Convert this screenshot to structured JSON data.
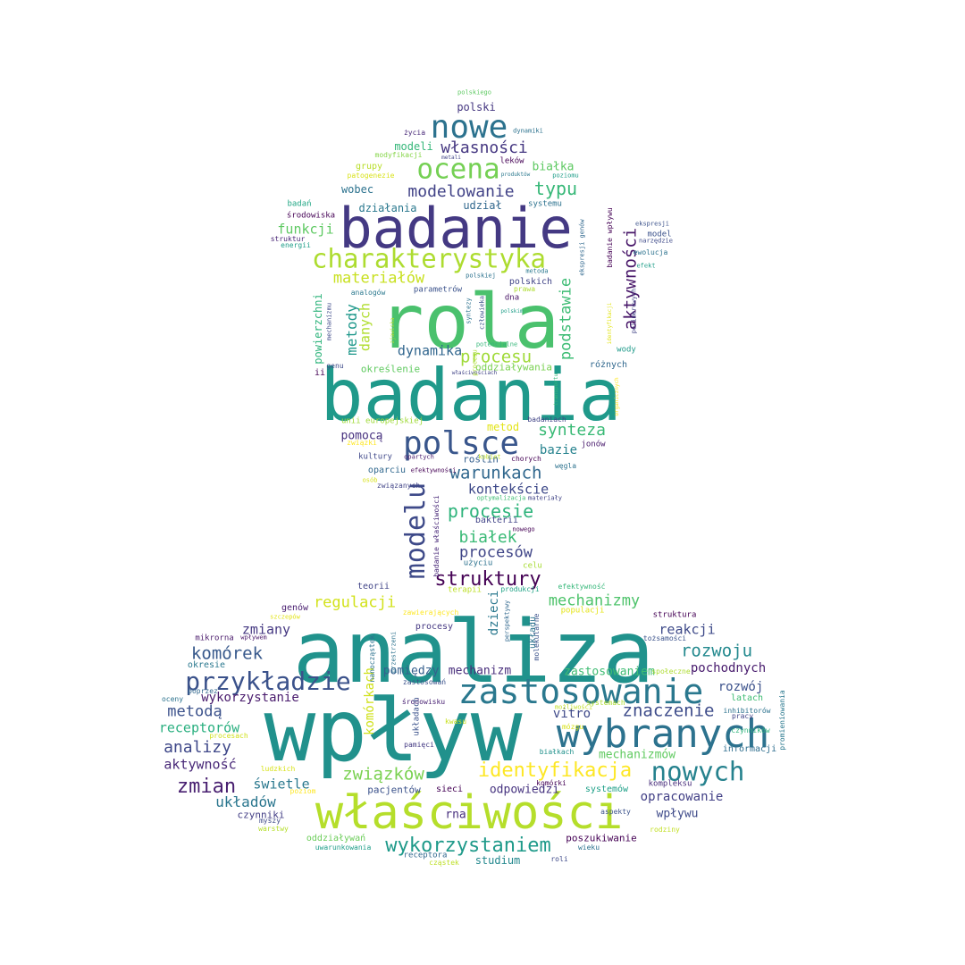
{
  "words": [
    {
      "text": "wpływ",
      "color": "#21918c"
    },
    {
      "text": "analiza",
      "color": "#20928c"
    },
    {
      "text": "badania",
      "color": "#1f998a"
    },
    {
      "text": "rola",
      "color": "#4ac16d"
    },
    {
      "text": "badanie",
      "color": "#443983"
    },
    {
      "text": "właściwości",
      "color": "#b5de2b"
    },
    {
      "text": "wybranych",
      "color": "#2c728e"
    },
    {
      "text": "zastosowanie",
      "color": "#2a788e"
    },
    {
      "text": "polsce",
      "color": "#39568c"
    },
    {
      "text": "charakterystyka",
      "color": "#addc30"
    },
    {
      "text": "ocena",
      "color": "#75d054"
    },
    {
      "text": "nowe",
      "color": "#2c728e"
    },
    {
      "text": "przykładzie",
      "color": "#3b528b"
    },
    {
      "text": "modelu",
      "color": "#3e4a89"
    },
    {
      "text": "nowych",
      "color": "#26828e"
    },
    {
      "text": "identyfikacja",
      "color": "#fde725"
    },
    {
      "text": "struktury",
      "color": "#440154"
    },
    {
      "text": "wykorzystaniem",
      "color": "#1f9a8a"
    },
    {
      "text": "zmian",
      "color": "#481f70"
    },
    {
      "text": "procesie",
      "color": "#2fb47c"
    },
    {
      "text": "warunkach",
      "color": "#31688e"
    },
    {
      "text": "związków",
      "color": "#7ad151"
    },
    {
      "text": "komórek",
      "color": "#38598c"
    },
    {
      "text": "synteza",
      "color": "#3aba76"
    },
    {
      "text": "typu",
      "color": "#37b878"
    },
    {
      "text": "znaczenie",
      "color": "#3e4c8a"
    },
    {
      "text": "rozwoju",
      "color": "#23898e"
    },
    {
      "text": "procesu",
      "color": "#a0da39"
    },
    {
      "text": "modelowanie",
      "color": "#414287"
    },
    {
      "text": "materiałów",
      "color": "#c8e020"
    },
    {
      "text": "aktywności",
      "color": "#481769"
    },
    {
      "text": "podstawie",
      "color": "#3dbc74"
    },
    {
      "text": "mechanizmy",
      "color": "#4ec36b"
    },
    {
      "text": "regulacji",
      "color": "#d2e21b"
    },
    {
      "text": "metody",
      "color": "#1f988b"
    },
    {
      "text": "białek",
      "color": "#3aba76"
    },
    {
      "text": "procesów",
      "color": "#404688"
    },
    {
      "text": "analizy",
      "color": "#3f4889"
    },
    {
      "text": "metodą",
      "color": "#3b518b"
    },
    {
      "text": "układów",
      "color": "#2a768e"
    },
    {
      "text": "własności",
      "color": "#453781"
    },
    {
      "text": "kontekście",
      "color": "#3e4989"
    },
    {
      "text": "dynamika",
      "color": "#31668e"
    },
    {
      "text": "funkcji",
      "color": "#5ec962"
    },
    {
      "text": "danych",
      "color": "#b0dd2f"
    },
    {
      "text": "receptorów",
      "color": "#29af7f"
    },
    {
      "text": "aktywność",
      "color": "#482878"
    },
    {
      "text": "świetle",
      "color": "#2a788e"
    },
    {
      "text": "komórkach",
      "color": "#d0e11c"
    },
    {
      "text": "zmiany",
      "color": "#453882"
    },
    {
      "text": "reakcji",
      "color": "#3e4a89"
    },
    {
      "text": "rozwój",
      "color": "#3b518b"
    },
    {
      "text": "pochodnych",
      "color": "#481b6d"
    },
    {
      "text": "vitro",
      "color": "#3e4989"
    },
    {
      "text": "mechanizm",
      "color": "#472d7b"
    },
    {
      "text": "pomiędzy",
      "color": "#355f8d"
    },
    {
      "text": "wykorzystanie",
      "color": "#481a6c"
    },
    {
      "text": "zastosowaniem",
      "color": "#3fbc73"
    },
    {
      "text": "mechanizmów",
      "color": "#60ca60"
    },
    {
      "text": "opracowanie",
      "color": "#424086"
    },
    {
      "text": "wpływu",
      "color": "#3e4a89"
    },
    {
      "text": "odpowiedzi",
      "color": "#46337f"
    },
    {
      "text": "rna",
      "color": "#472f7d"
    },
    {
      "text": "studium",
      "color": "#23888e"
    },
    {
      "text": "poszukiwanie",
      "color": "#440154"
    },
    {
      "text": "dzieci",
      "color": "#2a788e"
    },
    {
      "text": "bazie",
      "color": "#26828e"
    },
    {
      "text": "pomocą",
      "color": "#46307e"
    },
    {
      "text": "metod",
      "color": "#e2e418"
    },
    {
      "text": "powierzchni",
      "color": "#2fb47c"
    },
    {
      "text": "polski",
      "color": "#453781"
    },
    {
      "text": "modeli",
      "color": "#35b779"
    },
    {
      "text": "białka",
      "color": "#5ec962"
    },
    {
      "text": "wobec",
      "color": "#2c728e"
    },
    {
      "text": "działania",
      "color": "#2a788e"
    },
    {
      "text": "udział",
      "color": "#31688e"
    },
    {
      "text": "teorii",
      "color": "#414487"
    },
    {
      "text": "genów",
      "color": "#481d6f"
    },
    {
      "text": "czynniki",
      "color": "#433e85"
    },
    {
      "text": "pacjentów",
      "color": "#3b528b"
    },
    {
      "text": "oddziaływań",
      "color": "#6ccd5a"
    },
    {
      "text": "bakterii",
      "color": "#414487"
    },
    {
      "text": "oddziaływania",
      "color": "#7ad151"
    },
    {
      "text": "określenie",
      "color": "#60ca60"
    },
    {
      "text": "roślin",
      "color": "#355f8d"
    },
    {
      "text": "oparciu",
      "color": "#31688e"
    },
    {
      "text": "sieci",
      "color": "#440154"
    },
    {
      "text": "różnych",
      "color": "#31688e"
    },
    {
      "text": "procesy",
      "color": "#453882"
    },
    {
      "text": "kultury",
      "color": "#3f4889"
    },
    {
      "text": "latach",
      "color": "#3fbc73"
    },
    {
      "text": "informacji",
      "color": "#2e6e8e"
    },
    {
      "text": "okresie",
      "color": "#2a788e"
    },
    {
      "text": "struktura",
      "color": "#440154"
    },
    {
      "text": "systemów",
      "color": "#1fa088"
    },
    {
      "text": "badań",
      "color": "#22a785"
    },
    {
      "text": "środowiska",
      "color": "#440154"
    },
    {
      "text": "grupy",
      "color": "#b8de29"
    },
    {
      "text": "leków",
      "color": "#440154"
    },
    {
      "text": "polskich",
      "color": "#414487"
    },
    {
      "text": "model",
      "color": "#3b528b"
    },
    {
      "text": "dna",
      "color": "#471365"
    },
    {
      "text": "kompleksu",
      "color": "#472c7a"
    },
    {
      "text": "użyciu",
      "color": "#2c728e"
    },
    {
      "text": "celu",
      "color": "#a8db34"
    },
    {
      "text": "wody",
      "color": "#1f9a8a"
    },
    {
      "text": "systemu",
      "color": "#2c728e"
    },
    {
      "text": "analogów",
      "color": "#2a788e"
    },
    {
      "text": "parametrów",
      "color": "#3b528b"
    },
    {
      "text": "mikrorna",
      "color": "#48186a"
    },
    {
      "text": "populacji",
      "color": "#e5e419"
    },
    {
      "text": "życia",
      "color": "#482878"
    },
    {
      "text": "jonów",
      "color": "#481a6c"
    },
    {
      "text": "struktur",
      "color": "#482475"
    },
    {
      "text": "poprzez",
      "color": "#31688e"
    },
    {
      "text": "terapii",
      "color": "#bddf26"
    },
    {
      "text": "produkcji",
      "color": "#20a386"
    },
    {
      "text": "tożsamości",
      "color": "#3b528b"
    },
    {
      "text": "węgla",
      "color": "#2c728e"
    },
    {
      "text": "chorych",
      "color": "#440154"
    },
    {
      "text": "związanych",
      "color": "#414487"
    },
    {
      "text": "genu",
      "color": "#3e4a89"
    },
    {
      "text": "ii",
      "color": "#440154"
    },
    {
      "text": "unii europejskiej",
      "color": "#a0da39"
    },
    {
      "text": "badaniach",
      "color": "#414487"
    },
    {
      "text": "systemach",
      "color": "#addc30"
    },
    {
      "text": "środowisku",
      "color": "#482173"
    },
    {
      "text": "zastosowań",
      "color": "#3b528b"
    },
    {
      "text": "kwasu",
      "color": "#c8e020"
    },
    {
      "text": "mózgu",
      "color": "#d8e219"
    },
    {
      "text": "pamięci",
      "color": "#443a83"
    },
    {
      "text": "molekularne",
      "color": "#3b528b"
    },
    {
      "text": "efektywność",
      "color": "#35b779"
    },
    {
      "text": "energii",
      "color": "#1f9e89"
    },
    {
      "text": "inhibitorów",
      "color": "#2c728e"
    },
    {
      "text": "czynników",
      "color": "#2fb47c"
    },
    {
      "text": "pracy",
      "color": "#414487"
    },
    {
      "text": "społeczne",
      "color": "#addc30"
    },
    {
      "text": "promieniowania",
      "color": "#2a788e"
    },
    {
      "text": "komórki",
      "color": "#440154"
    },
    {
      "text": "aspekty",
      "color": "#3b528b"
    },
    {
      "text": "rodziny",
      "color": "#c2df23"
    },
    {
      "text": "wieku",
      "color": "#2c728e"
    },
    {
      "text": "roli",
      "color": "#3e4a89"
    },
    {
      "text": "cząstek",
      "color": "#bddf26"
    },
    {
      "text": "receptora",
      "color": "#31688e"
    },
    {
      "text": "uwarunkowania",
      "color": "#1f9e89"
    },
    {
      "text": "warstwy",
      "color": "#b5de2b"
    },
    {
      "text": "myszy",
      "color": "#3e4a89"
    },
    {
      "text": "ludzkich",
      "color": "#d8e219"
    },
    {
      "text": "poziom",
      "color": "#fde725"
    },
    {
      "text": "procesach",
      "color": "#d0e11c"
    },
    {
      "text": "oceny",
      "color": "#2c728e"
    },
    {
      "text": "wpływem",
      "color": "#481769"
    },
    {
      "text": "szczepów",
      "color": "#e2e418"
    },
    {
      "text": "zawierających",
      "color": "#fde725"
    },
    {
      "text": "efektywności",
      "color": "#440154"
    },
    {
      "text": "polskiego",
      "color": "#5ec962"
    },
    {
      "text": "dynamiki",
      "color": "#2c728e"
    },
    {
      "text": "modyfikacji",
      "color": "#86d549"
    },
    {
      "text": "metali",
      "color": "#414487"
    },
    {
      "text": "produktów",
      "color": "#2a788e"
    },
    {
      "text": "poziomu",
      "color": "#1f9e89"
    },
    {
      "text": "patogenezie",
      "color": "#d8e219"
    },
    {
      "text": "ekspresji",
      "color": "#3b528b"
    },
    {
      "text": "narzędzie",
      "color": "#3e4a89"
    },
    {
      "text": "ewolucja",
      "color": "#2c728e"
    },
    {
      "text": "efekt",
      "color": "#1f9e89"
    },
    {
      "text": "metoda",
      "color": "#2a788e"
    },
    {
      "text": "polskiej",
      "color": "#2c728e"
    },
    {
      "text": "prawa",
      "color": "#addc30"
    },
    {
      "text": "polskim",
      "color": "#1f9e89"
    },
    {
      "text": "potencjalne",
      "color": "#35b779"
    },
    {
      "text": "właściwościach",
      "color": "#414487"
    },
    {
      "text": "osób",
      "color": "#d8e219"
    },
    {
      "text": "optymalizacja",
      "color": "#3fbc73"
    },
    {
      "text": "materiały",
      "color": "#414487"
    },
    {
      "text": "nowego",
      "color": "#440154"
    },
    {
      "text": "kobiet",
      "color": "#bddf26"
    },
    {
      "text": "opartych",
      "color": "#481a6c"
    },
    {
      "text": "związki",
      "color": "#fde725"
    },
    {
      "text": "człowieka",
      "color": "#3b528b"
    },
    {
      "text": "syntezy",
      "color": "#2c728e"
    },
    {
      "text": "mechanizmu",
      "color": "#3e4a89"
    },
    {
      "text": "badanie wpływu",
      "color": "#440154"
    },
    {
      "text": "ekspresji genów",
      "color": "#31688e"
    },
    {
      "text": "polimerowych",
      "color": "#414487"
    },
    {
      "text": "identyfikacji",
      "color": "#e2e418"
    },
    {
      "text": "zjawiska",
      "color": "#a8db34"
    },
    {
      "text": "transportu",
      "color": "#35b779"
    },
    {
      "text": "organicznych",
      "color": "#fde725"
    },
    {
      "text": "przestrzeni",
      "color": "#2c728e"
    },
    {
      "text": "perspektywy",
      "color": "#31688e"
    },
    {
      "text": "nanocząstek",
      "color": "#2c728e"
    },
    {
      "text": "układach",
      "color": "#3b528b"
    },
    {
      "text": "układu",
      "color": "#2c728e"
    },
    {
      "text": "badanie właściwości",
      "color": "#482878"
    },
    {
      "text": "białkach",
      "color": "#21918c"
    },
    {
      "text": "możliwości",
      "color": "#c2df23"
    },
    {
      "text": "procesu",
      "color": "#addc30"
    }
  ]
}
